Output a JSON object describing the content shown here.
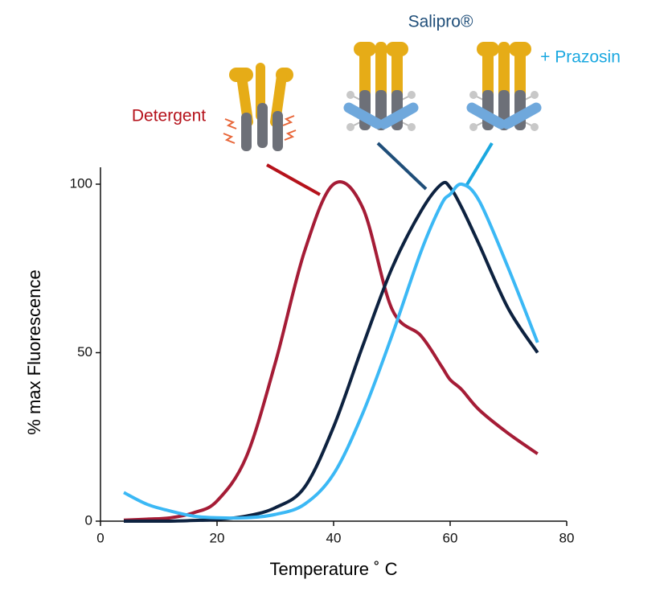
{
  "chart_data": {
    "type": "line",
    "annotations": [
      {
        "text": "Detergent",
        "color": "#b5121b"
      },
      {
        "text": "Salipro®",
        "color": "#1f4e79"
      },
      {
        "text": "+ Prazosin",
        "color": "#1ba8e0"
      }
    ],
    "x_label": "Temperature ˚ C",
    "y_label": "% max Fluorescence",
    "x": [
      4,
      8,
      12,
      16,
      20,
      25,
      30,
      35,
      40,
      45,
      50,
      55,
      58.5,
      60,
      62,
      65,
      70,
      75
    ],
    "series": [
      {
        "color": "#a51c36",
        "values": [
          0.3,
          0.6,
          1,
          2.5,
          6,
          19,
          47,
          80,
          100,
          93,
          63,
          55,
          46,
          42,
          39,
          33,
          26,
          20
        ]
      },
      {
        "color": "#0d2240",
        "values": [
          0,
          0,
          0,
          0.2,
          0.5,
          1.5,
          4,
          10,
          28,
          52,
          75,
          92,
          100,
          99,
          93,
          82,
          63,
          50
        ]
      },
      {
        "color": "#3bb8f5",
        "values": [
          8.5,
          5,
          3,
          1.5,
          1,
          1,
          2,
          5,
          14,
          32,
          55,
          80,
          94,
          97,
          100,
          95,
          75,
          53
        ]
      }
    ],
    "xlim": [
      0,
      80
    ],
    "xticks": [
      0,
      20,
      40,
      60,
      80
    ],
    "ylim": [
      0,
      100
    ],
    "yticks": [
      0,
      50,
      100
    ]
  }
}
